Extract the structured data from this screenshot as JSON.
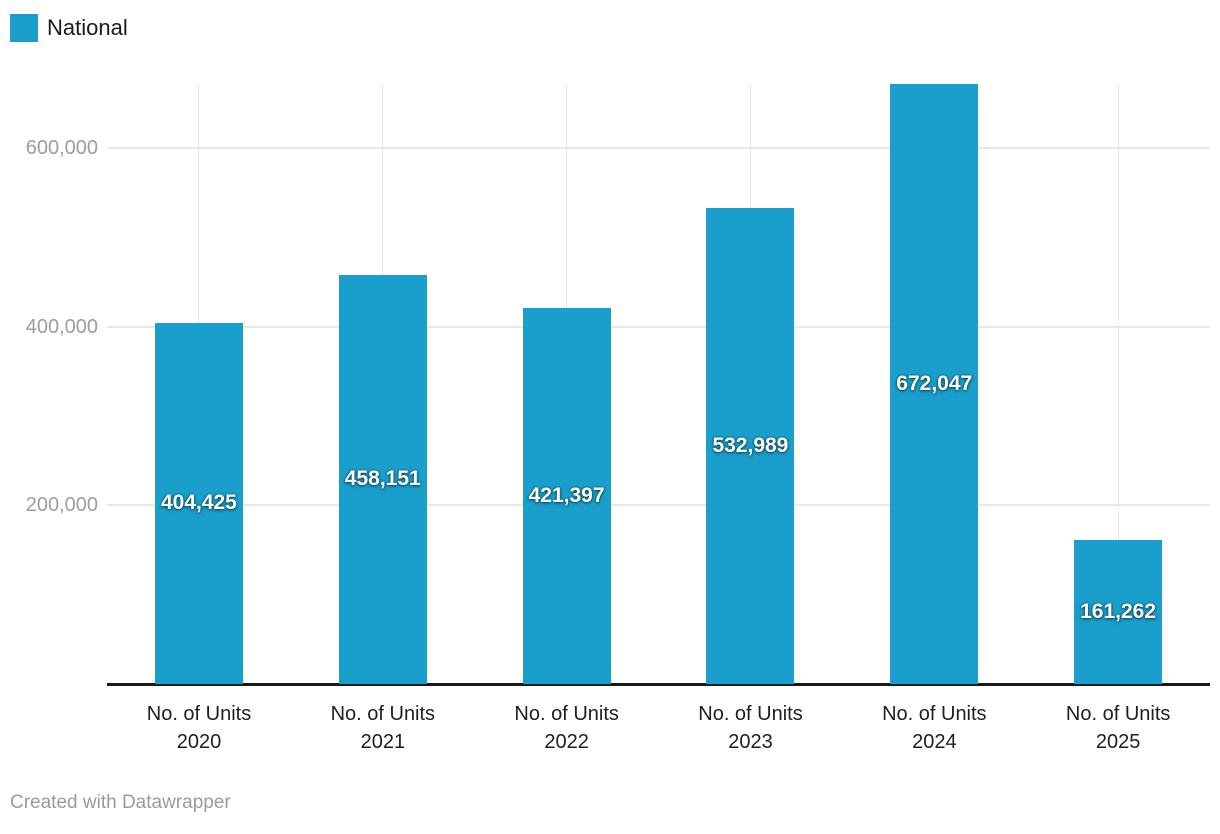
{
  "legend": {
    "label": "National"
  },
  "chart_data": {
    "type": "bar",
    "title": "",
    "xlabel": "",
    "ylabel": "",
    "categories": [
      "No. of Units 2020",
      "No. of Units 2021",
      "No. of Units 2022",
      "No. of Units 2023",
      "No. of Units 2024",
      "No. of Units 2025"
    ],
    "category_top_label": "No. of Units",
    "category_years": [
      "2020",
      "2021",
      "2022",
      "2023",
      "2024",
      "2025"
    ],
    "series": [
      {
        "name": "National",
        "values": [
          404425,
          458151,
          421397,
          532989,
          672047,
          161262
        ]
      }
    ],
    "value_labels": [
      "404,425",
      "458,151",
      "421,397",
      "532,989",
      "672,047",
      "161,262"
    ],
    "yticks": [
      200000,
      400000,
      600000
    ],
    "ytick_labels": [
      "200,000",
      "400,000",
      "600,000"
    ],
    "ylim": [
      0,
      672047
    ],
    "grid": true,
    "legend_position": "top-left"
  },
  "colors": {
    "bar": "#1a9ecb",
    "grid": "#e8e8e8",
    "axis": "#1a1a1a",
    "tick_label": "#9d9d9d",
    "category_label": "#1f1f1f",
    "value_label": "#ffffff",
    "attribution": "#9b9b9b"
  },
  "footer": {
    "attribution": "Created with Datawrapper"
  }
}
